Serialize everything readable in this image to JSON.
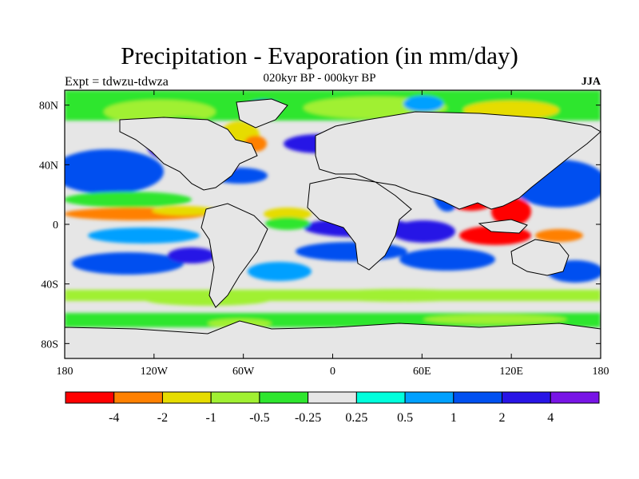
{
  "title": "Precipitation - Evaporation (in mm/day)",
  "subtitle": "020kyr BP - 000kyr BP",
  "left_label": "Expt = tdwzu-tdwza",
  "right_label": "JJA",
  "map": {
    "projection": "cylindrical-equidistant",
    "lon_range": [
      -180,
      180
    ],
    "lat_range": [
      -90,
      90
    ],
    "x_ticks": [
      {
        "lon": -180,
        "label": "180"
      },
      {
        "lon": -120,
        "label": "120W"
      },
      {
        "lon": -60,
        "label": "60W"
      },
      {
        "lon": 0,
        "label": "0"
      },
      {
        "lon": 60,
        "label": "60E"
      },
      {
        "lon": 120,
        "label": "120E"
      },
      {
        "lon": 180,
        "label": "180"
      }
    ],
    "y_ticks": [
      {
        "lat": 80,
        "label": "80N"
      },
      {
        "lat": 40,
        "label": "40N"
      },
      {
        "lat": 0,
        "label": "0"
      },
      {
        "lat": -40,
        "label": "40S"
      },
      {
        "lat": -80,
        "label": "80S"
      }
    ],
    "background_color": "#e6e6e6"
  },
  "colorbar": {
    "colors": [
      "#ff0000",
      "#ff8000",
      "#e6dc00",
      "#a0f032",
      "#2ee62e",
      "#e6e6e6",
      "#00ffdc",
      "#00a0ff",
      "#0050f0",
      "#2814e6",
      "#7814e6"
    ],
    "labels": [
      {
        "text": "-4",
        "after_box": 1
      },
      {
        "text": "-2",
        "after_box": 2
      },
      {
        "text": "-1",
        "after_box": 3
      },
      {
        "text": "-0.5",
        "after_box": 4
      },
      {
        "text": "-0.25",
        "after_box": 5
      },
      {
        "text": "0.25",
        "after_box": 6
      },
      {
        "text": "0.5",
        "after_box": 7
      },
      {
        "text": "1",
        "after_box": 8
      },
      {
        "text": "2",
        "after_box": 9
      },
      {
        "text": "4",
        "after_box": 10
      }
    ]
  }
}
